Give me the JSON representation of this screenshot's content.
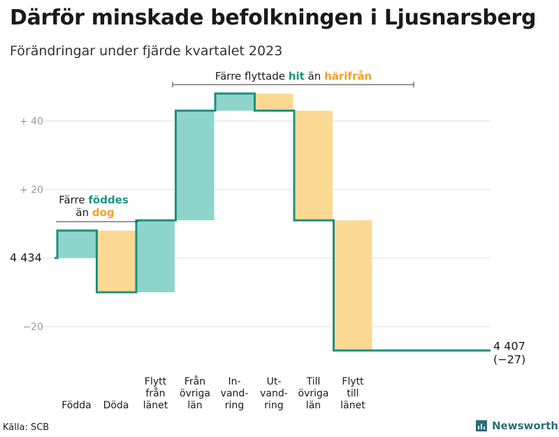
{
  "title": "Därför minskade befolkningen i Ljusnarsberg",
  "subtitle": "Förändringar under fjärde kvartalet 2023",
  "source": "Källa: SCB",
  "brand": "Newsworthy",
  "colors": {
    "increase": "#8dd5ca",
    "decrease": "#fcd992",
    "step": "#1f8e80",
    "teal_text": "#1a9583",
    "orange_text": "#f0a028",
    "grid": "#dcdcdc"
  },
  "annotations": {
    "birth": {
      "line1_pre": "Färre ",
      "line1_hl": "föddes",
      "line2_pre": "än ",
      "line2_hl": "dog"
    },
    "move": {
      "pre": "Färre flyttade ",
      "hl1": "hit",
      "mid": " än ",
      "hl2": "härifrån"
    }
  },
  "chart_data": {
    "type": "waterfall",
    "start_value": 4434,
    "start_label": "4 434",
    "end_value": 4407,
    "end_label": "4 407",
    "end_change_label": "(−27)",
    "ylim": [
      -30,
      50
    ],
    "yticks": [
      {
        "value": 40,
        "label": "+  40"
      },
      {
        "value": 20,
        "label": "+  20"
      },
      {
        "value": -20,
        "label": "−20"
      }
    ],
    "bars": [
      {
        "category": [
          "Födda"
        ],
        "change": 8
      },
      {
        "category": [
          "Döda"
        ],
        "change": -18
      },
      {
        "category": [
          "Flytt",
          "från",
          "länet"
        ],
        "change": 21
      },
      {
        "category": [
          "Från",
          "övriga",
          "län"
        ],
        "change": 32
      },
      {
        "category": [
          "In-",
          "vand-",
          "ring"
        ],
        "change": 5
      },
      {
        "category": [
          "Ut-",
          "vand-",
          "ring"
        ],
        "change": -5
      },
      {
        "category": [
          "Till",
          "övriga",
          "län"
        ],
        "change": -32
      },
      {
        "category": [
          "Flytt",
          "till",
          "länet"
        ],
        "change": -38
      }
    ]
  }
}
